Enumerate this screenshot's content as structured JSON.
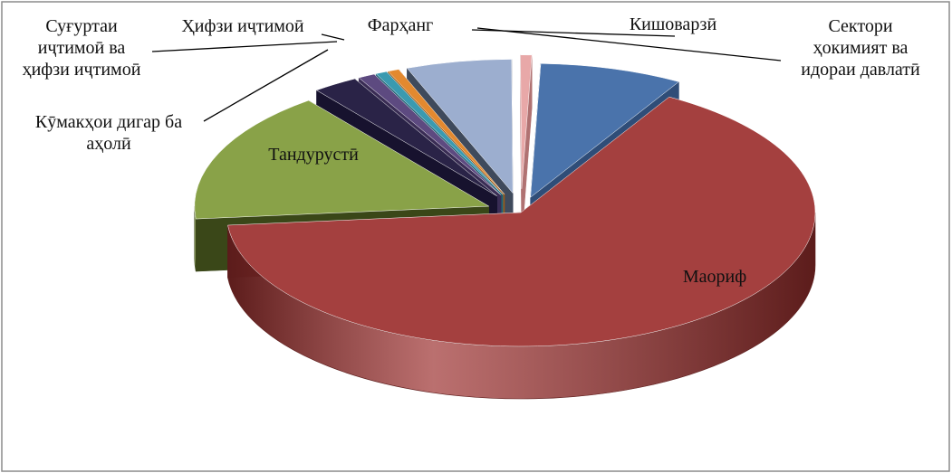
{
  "chart_data": {
    "type": "pie",
    "style": "3d-exploded",
    "title": "",
    "slices": [
      {
        "key": "agri",
        "label": [
          "Кишоварзӣ"
        ],
        "value": 7.6,
        "color": "#4a73ab",
        "dark": "#2f4d78",
        "explode": 0.08
      },
      {
        "key": "edu",
        "label": [
          "Маориф"
        ],
        "value": 63.0,
        "color": "#a4403f",
        "dark": "#5c1c1b",
        "explode": 0
      },
      {
        "key": "health",
        "label": [
          "Тандурустӣ"
        ],
        "value": 15.5,
        "color": "#89a248",
        "dark": "#3a4718",
        "explode": 0.08
      },
      {
        "key": "other_aid",
        "label": [
          "Кӯмакҳои дигар ба",
          "аҳолӣ"
        ],
        "value": 2.4,
        "color": "#2a2347",
        "dark": "#17122e",
        "explode": 0.1
      },
      {
        "key": "social_ins",
        "label": [
          "Суғуртаи",
          "иҷтимоӣ ва",
          "ҳифзи иҷтимоӣ"
        ],
        "value": 0.9,
        "color": "#5d4a80",
        "dark": "#3a2d55",
        "explode": 0.1
      },
      {
        "key": "social_prot",
        "label": [
          "Ҳифзи иҷтимоӣ"
        ],
        "value": 0.6,
        "color": "#3a9ab0",
        "dark": "#1f6677",
        "explode": 0.1
      },
      {
        "key": "culture_or",
        "label": [
          ""
        ],
        "value": 0.6,
        "color": "#e3892f",
        "dark": "#9c5a18",
        "explode": 0.1
      },
      {
        "key": "culture",
        "label": [
          "Фарҳанг"
        ],
        "value": 5.6,
        "color": "#9caecf",
        "dark": "#3f4a5c",
        "explode": 0.1
      },
      {
        "key": "gov",
        "label": [
          "Сектори",
          "ҳокимият ва",
          "идораи давлатӣ"
        ],
        "value": 0.6,
        "color": "#e8a8a8",
        "dark": "#b07272",
        "explode": 0.12
      }
    ]
  }
}
